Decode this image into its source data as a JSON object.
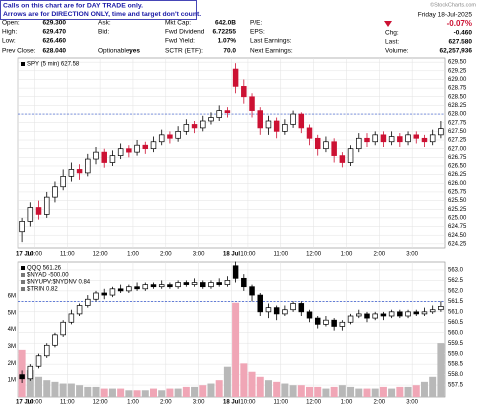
{
  "header": {
    "notice": [
      "Calls on this chart are for DAY TRADE only.",
      "Arrows are for DIRECTION ONLY, time and target don't count."
    ],
    "source": "©StockCharts.com",
    "date": "Friday 18-Jul-2025",
    "change_pct": "-0.07%",
    "quote": [
      [
        "Open:",
        "629.300"
      ],
      [
        "High:",
        "629.470"
      ],
      [
        "Low:",
        "626.460"
      ],
      [
        "Prev Close:",
        "628.040"
      ],
      [
        "Ask:"
      ],
      [
        "Bid:"
      ],
      [
        "Optionable:",
        "yes"
      ],
      [
        "Mkt Cap:",
        "642.0B"
      ],
      [
        "Fwd Dividend",
        "6.72255"
      ],
      [
        "Fwd Yield:",
        "1.07%"
      ],
      [
        "SCTR (ETF):",
        "70.0"
      ],
      [
        "P/E:"
      ],
      [
        "EPS:"
      ],
      [
        "Last Earnings:"
      ],
      [
        "Next Earnings:"
      ],
      [
        "Chg:",
        "-0.460"
      ],
      [
        "Last:",
        "627.580"
      ],
      [
        "Volume:",
        "62,257,936"
      ]
    ]
  },
  "chart_data": [
    {
      "type": "candlestick",
      "legend": [
        "SPY (5 min) 627.58"
      ],
      "categories": [
        "17 Jul",
        null,
        "10:00",
        null,
        null,
        null,
        "11:00",
        null,
        null,
        null,
        "12:00",
        null,
        null,
        null,
        "1:00",
        null,
        null,
        null,
        "2:00",
        null,
        null,
        null,
        "3:00",
        null,
        null,
        null,
        "18 Jul",
        null,
        "10:00",
        null,
        null,
        null,
        "11:00",
        null,
        null,
        null,
        "12:00",
        null,
        null,
        null,
        "1:00",
        null,
        null,
        null,
        "2:00",
        null,
        null,
        null,
        "3:00",
        null,
        null,
        null
      ],
      "open": [
        624.6,
        624.9,
        625.3,
        625.1,
        625.6,
        625.9,
        626.2,
        626.4,
        626.3,
        626.7,
        626.9,
        626.6,
        626.8,
        627,
        626.9,
        627.1,
        627,
        627.2,
        627.4,
        627.3,
        627.5,
        627.7,
        627.6,
        627.8,
        627.9,
        628.1,
        629.3,
        628.8,
        628.5,
        628.1,
        627.6,
        627.8,
        627.5,
        627.7,
        628,
        627.6,
        627.3,
        627,
        627.2,
        626.8,
        626.6,
        627,
        627.3,
        627.2,
        627.4,
        627.2,
        627.35,
        627.2,
        627.4,
        627.3,
        627.2,
        627.4
      ],
      "high": [
        625,
        625.45,
        625.5,
        625.75,
        626.05,
        626.4,
        626.6,
        626.55,
        626.85,
        627.05,
        627,
        626.95,
        627.15,
        627.1,
        627.25,
        627.2,
        627.35,
        627.55,
        627.5,
        627.65,
        627.85,
        627.8,
        627.95,
        628.05,
        628.25,
        628.2,
        629.47,
        629,
        628.6,
        628.2,
        627.95,
        627.9,
        627.85,
        628.1,
        628.05,
        627.7,
        627.4,
        627.35,
        627.3,
        626.9,
        627.1,
        627.45,
        627.45,
        627.5,
        627.5,
        627.5,
        627.45,
        627.5,
        627.5,
        627.4,
        627.55,
        627.8
      ],
      "low": [
        624.3,
        624.75,
        624.95,
        625,
        625.45,
        625.8,
        626.05,
        626.1,
        626.2,
        626.55,
        626.45,
        626.5,
        626.7,
        626.75,
        626.8,
        626.85,
        626.9,
        627.1,
        627.15,
        627.2,
        627.4,
        627.45,
        627.5,
        627.7,
        627.8,
        627.9,
        628.6,
        628.3,
        627.9,
        627.4,
        627.4,
        627.3,
        627.4,
        627.6,
        627.45,
        627.1,
        626.8,
        626.9,
        626.6,
        626.46,
        626.5,
        626.9,
        627.05,
        627.1,
        627.05,
        627.1,
        627.05,
        627.1,
        627.15,
        627.05,
        627.1,
        627.3
      ],
      "close": [
        624.9,
        625.3,
        625.1,
        625.6,
        625.9,
        626.2,
        626.4,
        626.3,
        626.7,
        626.9,
        626.6,
        626.8,
        627,
        626.9,
        627.1,
        627,
        627.2,
        627.4,
        627.3,
        627.5,
        627.7,
        627.6,
        627.8,
        627.9,
        628.1,
        628.04,
        628.8,
        628.5,
        628.1,
        627.6,
        627.8,
        627.5,
        627.7,
        628,
        627.6,
        627.3,
        627,
        627.2,
        626.8,
        626.6,
        627,
        627.3,
        627.2,
        627.4,
        627.2,
        627.35,
        627.2,
        627.4,
        627.3,
        627.2,
        627.4,
        627.58
      ],
      "up_color": "#000000",
      "down_color": "#cc1133",
      "hline": 628,
      "ylim": [
        624.13,
        629.62
      ],
      "yticks": [
        624.25,
        {
          "value": 624.5,
          "label": "624.50"
        },
        624.75,
        {
          "value": 625,
          "label": "625.00"
        },
        625.25,
        {
          "value": 625.5,
          "label": "625.50"
        },
        625.75,
        {
          "value": 626,
          "label": "626.00"
        },
        626.25,
        {
          "value": 626.5,
          "label": "626.50"
        },
        626.75,
        {
          "value": 627,
          "label": "627.00"
        },
        627.25,
        {
          "value": 627.5,
          "label": "627.50"
        },
        627.75,
        {
          "value": 628,
          "label": "628.00"
        },
        628.25,
        {
          "value": 628.5,
          "label": "628.50"
        },
        628.75,
        {
          "value": 629,
          "label": "629.00"
        },
        629.25,
        {
          "value": 629.5,
          "label": "629.50"
        }
      ],
      "grid": true
    },
    {
      "type": "candlestick",
      "legend": [
        "QQQ 561.26",
        "$NYAD -500.00",
        "$NYUPV:$NYDNV 0.84",
        "$TRIN 0.82"
      ],
      "categories": [
        "17 Jul",
        null,
        "10:00",
        null,
        null,
        null,
        "11:00",
        null,
        null,
        null,
        "12:00",
        null,
        null,
        null,
        "1:00",
        null,
        null,
        null,
        "2:00",
        null,
        null,
        null,
        "3:00",
        null,
        null,
        null,
        "18 Jul",
        null,
        "10:00",
        null,
        null,
        null,
        "11:00",
        null,
        null,
        null,
        "12:00",
        null,
        null,
        null,
        "1:00",
        null,
        null,
        null,
        "2:00",
        null,
        null,
        null,
        "3:00",
        null,
        null,
        null
      ],
      "open": [
        558,
        557.8,
        558.4,
        558.9,
        559.4,
        559.9,
        560.5,
        560.9,
        561.3,
        561.6,
        561.9,
        561.8,
        562.1,
        562,
        562.2,
        562.1,
        562.3,
        562.2,
        562.3,
        562.2,
        562.4,
        562.3,
        562.4,
        562.2,
        562.4,
        562.3,
        563.2,
        562.6,
        562.2,
        561.8,
        561,
        561.2,
        560.9,
        561.1,
        561.4,
        561,
        560.7,
        560.4,
        560.6,
        560.3,
        560.5,
        560.8,
        560.9,
        560.7,
        560.9,
        560.8,
        561,
        560.8,
        561,
        560.9,
        561,
        561.1
      ],
      "high": [
        558.2,
        558.5,
        559,
        559.5,
        560,
        560.6,
        561.1,
        561.4,
        561.8,
        562,
        562.1,
        562.2,
        562.3,
        562.3,
        562.4,
        562.4,
        562.4,
        562.5,
        562.4,
        562.5,
        562.5,
        562.6,
        562.5,
        562.5,
        562.6,
        562.7,
        563.4,
        562.8,
        562.3,
        561.9,
        561.4,
        561.3,
        561.3,
        561.5,
        561.5,
        561.1,
        560.8,
        560.8,
        560.7,
        560.6,
        560.9,
        561.1,
        561,
        561,
        561,
        561.1,
        561.1,
        561.1,
        561.1,
        561.2,
        561.3,
        561.5
      ],
      "low": [
        557.6,
        557.7,
        558.3,
        558.8,
        559.3,
        559.8,
        560.4,
        560.8,
        561.2,
        561.5,
        561.6,
        561.7,
        561.9,
        561.9,
        562,
        562,
        562.1,
        562.1,
        562.1,
        562.1,
        562.2,
        562.2,
        562.1,
        562.1,
        562.2,
        562.2,
        562.4,
        562,
        561.5,
        560.8,
        560.7,
        560.6,
        560.8,
        561,
        560.8,
        560.5,
        560.2,
        560.3,
        560.1,
        560.1,
        560.4,
        560.7,
        560.5,
        560.6,
        560.6,
        560.7,
        560.7,
        560.7,
        560.8,
        560.8,
        560.9,
        561
      ],
      "close": [
        557.8,
        558.4,
        558.9,
        559.4,
        559.9,
        560.5,
        560.9,
        561.3,
        561.6,
        561.9,
        561.8,
        562.1,
        562,
        562.2,
        562.1,
        562.3,
        562.2,
        562.3,
        562.2,
        562.4,
        562.3,
        562.4,
        562.2,
        562.4,
        562.3,
        562.5,
        562.6,
        562.2,
        561.8,
        561,
        561.2,
        560.9,
        561.1,
        561.4,
        561,
        560.7,
        560.4,
        560.6,
        560.3,
        560.5,
        560.8,
        560.9,
        560.7,
        560.9,
        560.8,
        561,
        560.8,
        561,
        560.9,
        561,
        561.1,
        561.26
      ],
      "up_color": "#000000",
      "down_color": "#000000",
      "hline": 561.5,
      "ylim": [
        556.93,
        563.38
      ],
      "yticks": [
        557.5,
        {
          "value": 558,
          "label": "558.0"
        },
        558.5,
        {
          "value": 559,
          "label": "559.0"
        },
        559.5,
        {
          "value": 560,
          "label": "560.0"
        },
        560.5,
        {
          "value": 561,
          "label": "561.0"
        },
        561.5,
        {
          "value": 562,
          "label": "562.0"
        },
        562.5,
        {
          "value": 563,
          "label": "563.0"
        }
      ],
      "volume": {
        "values": [
          2.8,
          1.6,
          1.2,
          1,
          0.9,
          0.8,
          0.8,
          0.7,
          0.6,
          0.6,
          0.5,
          0.5,
          0.5,
          0.4,
          0.4,
          0.4,
          0.5,
          0.4,
          0.5,
          0.5,
          0.6,
          0.6,
          0.7,
          0.8,
          1,
          1.8,
          5.6,
          2,
          1.5,
          1.2,
          1,
          0.9,
          0.8,
          0.7,
          0.7,
          0.6,
          0.6,
          0.5,
          0.6,
          0.7,
          0.6,
          0.5,
          0.5,
          0.5,
          0.6,
          0.5,
          0.6,
          0.6,
          0.7,
          0.9,
          1.2,
          3.2
        ],
        "up_color": "#b8b8b8",
        "down_color": "#f0a6b6",
        "ylim": [
          0,
          8.02
        ],
        "yticks": [
          {
            "value": 1,
            "label": "1M"
          },
          {
            "value": 2,
            "label": "2M"
          },
          {
            "value": 3,
            "label": "3M"
          },
          {
            "value": 4,
            "label": "4M"
          },
          {
            "value": 5,
            "label": "5M"
          },
          {
            "value": 6,
            "label": "6M"
          }
        ]
      },
      "grid": true
    }
  ]
}
